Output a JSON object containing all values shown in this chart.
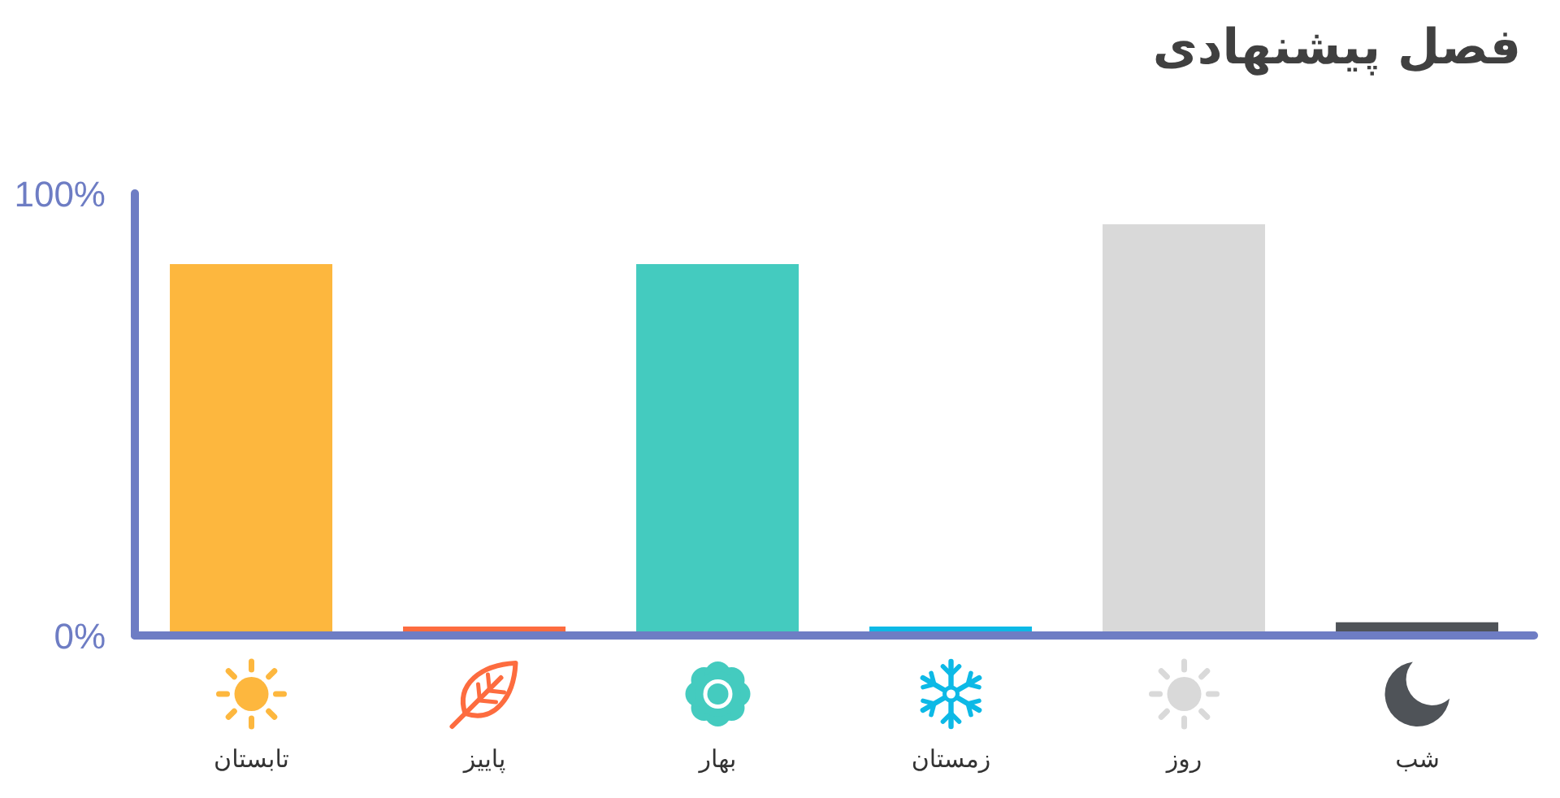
{
  "chart_data": {
    "type": "bar",
    "title": "فصل پیشنهادی",
    "categories": [
      "تابستان",
      "پاییز",
      "بهار",
      "زمستان",
      "روز",
      "شب"
    ],
    "values": [
      84,
      2,
      84,
      2,
      93,
      3
    ],
    "colors": [
      "#fdb73e",
      "#fd6c3f",
      "#44cbbf",
      "#0db9e6",
      "#d9d9d9",
      "#4f5358"
    ],
    "ylim": [
      0,
      100
    ],
    "yticks": [
      {
        "value": 0,
        "label": "0%"
      },
      {
        "value": 100,
        "label": "100%"
      }
    ]
  }
}
